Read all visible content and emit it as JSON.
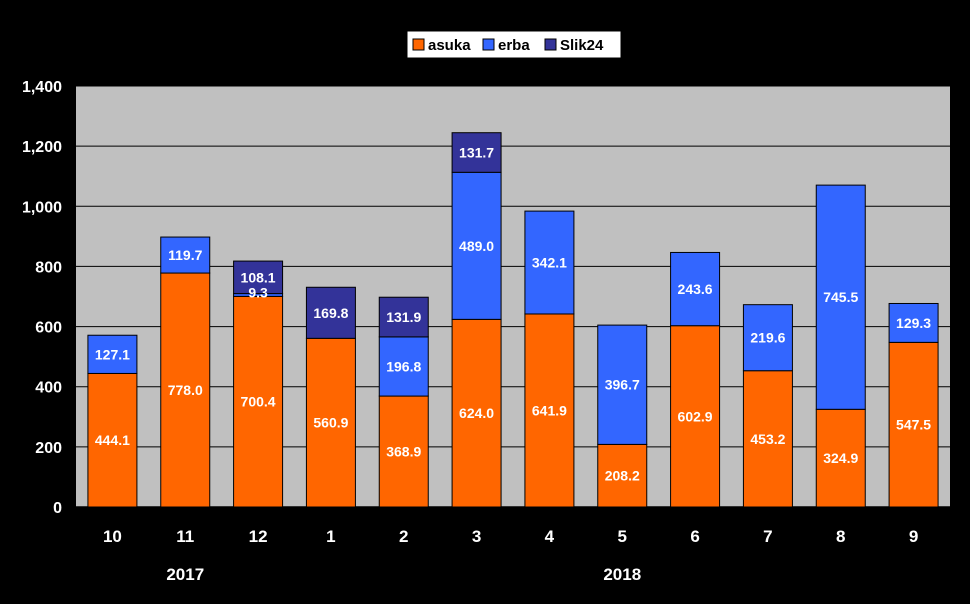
{
  "chart_data": {
    "type": "bar",
    "stacked": true,
    "categories": [
      "10",
      "11",
      "12",
      "1",
      "2",
      "3",
      "4",
      "5",
      "6",
      "7",
      "8",
      "9"
    ],
    "year_labels": [
      {
        "label": "2017",
        "from": 0,
        "to": 2
      },
      {
        "label": "2018",
        "from": 3,
        "to": 11
      }
    ],
    "series": [
      {
        "name": "asuka",
        "color": "#FF6600",
        "values": [
          444.1,
          778.0,
          700.4,
          560.9,
          368.9,
          624.0,
          641.9,
          208.2,
          602.9,
          453.2,
          324.9,
          547.5
        ],
        "labels": [
          "444.1",
          "778.0",
          "700.4",
          "560.9",
          "368.9",
          "624.0",
          "641.9",
          "208.2",
          "602.9",
          "453.2",
          "324.9",
          "547.5"
        ]
      },
      {
        "name": "erba",
        "color": "#3366FF",
        "values": [
          127.1,
          119.7,
          9.3,
          0,
          196.8,
          489.0,
          342.1,
          396.7,
          243.6,
          219.6,
          745.5,
          129.3
        ],
        "labels": [
          "127.1",
          "119.7",
          "9.3",
          "",
          "196.8",
          "489.0",
          "342.1",
          "396.7",
          "243.6",
          "219.6",
          "745.5",
          "129.3"
        ]
      },
      {
        "name": "Slik24",
        "color": "#333399",
        "values": [
          0,
          0,
          108.1,
          169.8,
          131.9,
          131.7,
          0,
          0,
          0,
          0,
          0,
          0
        ],
        "labels": [
          "",
          "",
          "108.1",
          "169.8",
          "131.9",
          "131.7",
          "",
          "",
          "",
          "",
          "",
          ""
        ]
      }
    ],
    "ylim": [
      0,
      1400
    ],
    "yticks": [
      0,
      200,
      400,
      600,
      800,
      1000,
      1200,
      1400
    ],
    "ytick_labels": [
      "0",
      "200",
      "400",
      "600",
      "800",
      "1,000",
      "1,200",
      "1,400"
    ],
    "grid": true,
    "legend": "top-center",
    "title": "",
    "xlabel": "",
    "ylabel": "",
    "colors": {
      "background": "#000000",
      "plot_area": "#C0C0C0",
      "gridline": "#000000",
      "text": "#FFFFFF"
    }
  }
}
